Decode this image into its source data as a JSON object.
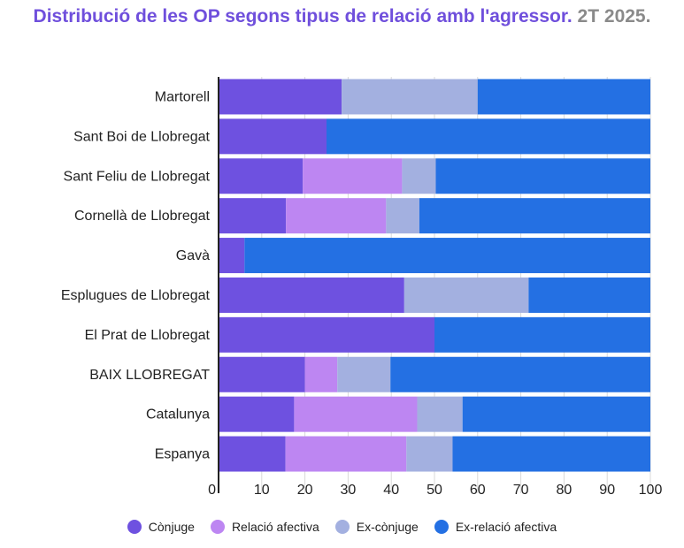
{
  "title": {
    "main": "Distribució de les OP segons tipus de relació amb l'agressor.",
    "sub": "2T 2025."
  },
  "chart_data": {
    "type": "bar",
    "orientation": "horizontal",
    "stacked": true,
    "title": "Distribució de les OP segons tipus de relació amb l'agressor. 2T 2025.",
    "xlabel": "",
    "ylabel": "",
    "xlim": [
      0,
      100
    ],
    "x_ticks": [
      "0",
      "10",
      "20",
      "30",
      "40",
      "50",
      "60",
      "70",
      "80",
      "90",
      "100"
    ],
    "grid": true,
    "legend_position": "bottom",
    "categories": [
      "Martorell",
      "Sant Boi de Llobregat",
      "Sant Feliu de Llobregat",
      "Cornellà de Llobregat",
      "Gavà",
      "Esplugues de Llobregat",
      "El Prat de Llobregat",
      "BAIX LLOBREGAT",
      "Catalunya",
      "Espanya"
    ],
    "series": [
      {
        "name": "Cònjuge",
        "color": "#6e51e0",
        "values": [
          28.5,
          25,
          19.5,
          15.6,
          6,
          43,
          50,
          20,
          17.5,
          15.5
        ]
      },
      {
        "name": "Relació afectiva",
        "color": "#bd86f2",
        "values": [
          0,
          0,
          23,
          23.2,
          0,
          0,
          0,
          7.5,
          28.5,
          28
        ]
      },
      {
        "name": "Ex-cònjuge",
        "color": "#a3b0e0",
        "values": [
          31.5,
          0,
          7.8,
          7.7,
          0,
          28.8,
          0,
          12.3,
          10.5,
          10.7
        ]
      },
      {
        "name": "Ex-relació afectiva",
        "color": "#2470e3",
        "values": [
          40,
          75,
          49.7,
          53.5,
          94,
          28.2,
          50,
          60.2,
          43.5,
          45.8
        ]
      }
    ]
  }
}
